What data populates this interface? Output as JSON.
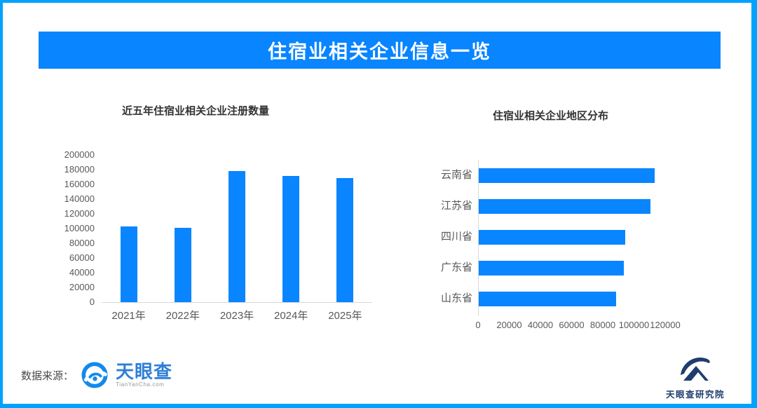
{
  "header": {
    "title": "住宿业相关企业信息一览"
  },
  "colors": {
    "frame_border": "#00A2FF",
    "banner": "#0885FF",
    "bar": "#0885FF",
    "axis_text": "#595959",
    "axis_line": "#D9D9D9",
    "title_text": "#333333",
    "tianyancha_blue": "#2E7FD6",
    "research_navy": "#1F3D6E"
  },
  "chart_data": [
    {
      "type": "bar",
      "title": "近五年住宿业相关企业注册数量",
      "categories": [
        "2021年",
        "2022年",
        "2023年",
        "2024年",
        "2025年"
      ],
      "values": [
        103000,
        101000,
        178000,
        171000,
        169000
      ],
      "xlabel": "",
      "ylabel": "",
      "ylim": [
        0,
        200000
      ],
      "ytick_interval": 20000,
      "grid": false,
      "legend": false
    },
    {
      "type": "bar-horizontal",
      "title": "住宿业相关企业地区分布",
      "categories": [
        "云南省",
        "江苏省",
        "四川省",
        "广东省",
        "山东省"
      ],
      "values": [
        113000,
        110000,
        94000,
        93000,
        88000
      ],
      "xlabel": "",
      "ylabel": "",
      "xlim": [
        0,
        120000
      ],
      "xtick_interval": 20000,
      "grid": false,
      "legend": false
    }
  ],
  "footer": {
    "source_label": "数据来源：",
    "tianyancha_logo_text": "天眼查",
    "tianyancha_logo_sub": "TianYanCha.com",
    "research_logo_text": "天眼查研究院"
  }
}
